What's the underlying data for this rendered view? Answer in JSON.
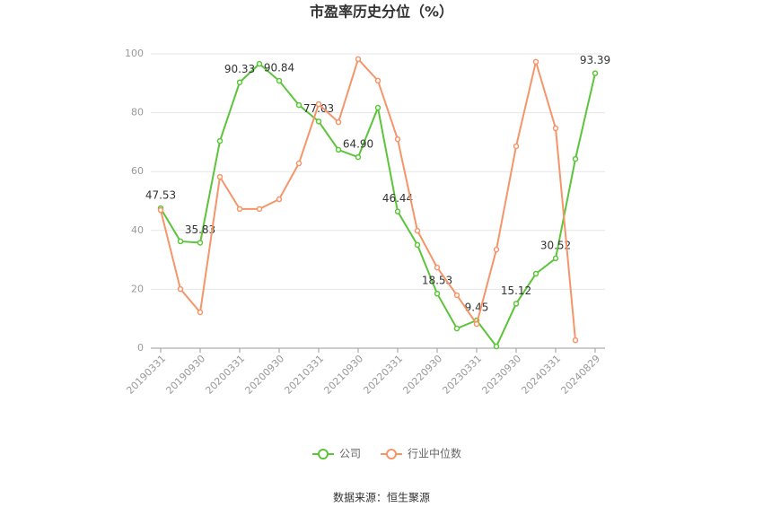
{
  "chart_data": {
    "type": "line",
    "title": "市盈率历史分位（%）",
    "categories": [
      "20190331",
      null,
      "20190930",
      null,
      "20200331",
      null,
      "20200930",
      null,
      "20210331",
      null,
      "20210930",
      null,
      "20220331",
      null,
      "20220930",
      null,
      "20230331",
      null,
      "20230930",
      null,
      "20240331",
      null,
      "20240829"
    ],
    "series": [
      {
        "name": "公司",
        "color": "#5cc43a",
        "values": [
          47.53,
          36.3,
          35.83,
          70.4,
          90.33,
          96.6,
          90.84,
          82.6,
          77.03,
          67.4,
          64.9,
          81.7,
          46.44,
          35.1,
          18.53,
          6.7,
          9.45,
          0.6,
          15.12,
          25.3,
          30.52,
          64.3,
          93.39
        ],
        "value_labels": [
          "47.53",
          null,
          "35.83",
          null,
          "90.33",
          null,
          "90.84",
          null,
          "77.03",
          null,
          "64.90",
          null,
          "46.44",
          null,
          "18.53",
          null,
          "9.45",
          null,
          "15.12",
          null,
          "30.52",
          null,
          "93.39"
        ]
      },
      {
        "name": "行业中位数",
        "color": "#f4956a",
        "values": [
          46.9,
          20.1,
          12.2,
          58.2,
          47.3,
          47.3,
          50.6,
          62.8,
          82.9,
          76.8,
          98.2,
          90.9,
          71.0,
          39.9,
          27.4,
          18.0,
          8.2,
          33.5,
          68.6,
          97.3,
          74.7,
          2.7,
          null
        ]
      }
    ],
    "ylim": [
      0,
      100
    ],
    "yticks": [
      0,
      20,
      40,
      60,
      80,
      100
    ],
    "grid": true,
    "legend": "bottom",
    "source": "数据来源：恒生聚源"
  }
}
